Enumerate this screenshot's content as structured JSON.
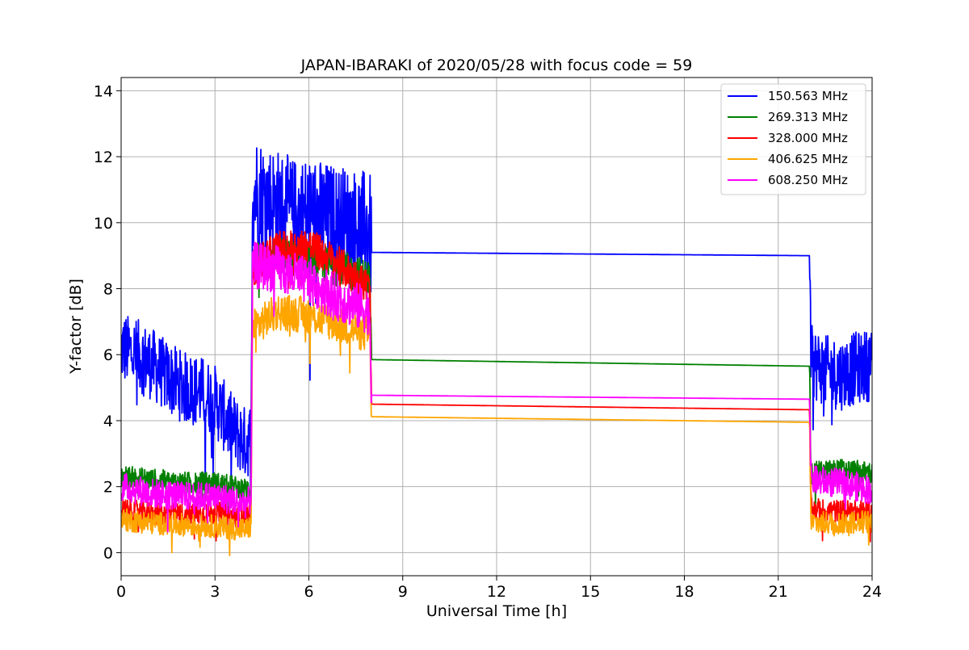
{
  "chart_data": {
    "type": "line",
    "title": "JAPAN-IBARAKI of 2020/05/28 with focus code = 59",
    "xlabel": "Universal Time [h]",
    "ylabel": "Y-factor [dB]",
    "xlim": [
      0,
      24
    ],
    "ylim": [
      -0.7,
      14.4
    ],
    "xticks": [
      "0",
      "3",
      "6",
      "9",
      "12",
      "15",
      "18",
      "21",
      "24"
    ],
    "yticks": [
      "0",
      "2",
      "4",
      "6",
      "8",
      "10",
      "12",
      "14"
    ],
    "grid": true,
    "legend_position": "top-right",
    "series": [
      {
        "name": "150.563 MHz",
        "color": "#0000ff",
        "points": [
          [
            0,
            6.2
          ],
          [
            0.5,
            6.0
          ],
          [
            1.0,
            5.7
          ],
          [
            1.5,
            5.3
          ],
          [
            2.0,
            5.0
          ],
          [
            2.5,
            4.9
          ],
          [
            3.0,
            4.6
          ],
          [
            3.5,
            3.8
          ],
          [
            4.0,
            3.3
          ],
          [
            4.15,
            3.5
          ],
          [
            4.2,
            11.0
          ],
          [
            4.5,
            10.8
          ],
          [
            5.0,
            10.5
          ],
          [
            5.5,
            10.2
          ],
          [
            6.0,
            10.3
          ],
          [
            6.5,
            10.1
          ],
          [
            7.0,
            10.0
          ],
          [
            7.5,
            9.9
          ],
          [
            7.95,
            9.8
          ],
          [
            8.0,
            9.1
          ],
          [
            22.0,
            9.0
          ],
          [
            22.05,
            5.8
          ],
          [
            22.5,
            5.5
          ],
          [
            23.0,
            5.4
          ],
          [
            23.5,
            5.6
          ],
          [
            24.0,
            5.7
          ]
        ],
        "noise": 1.1
      },
      {
        "name": "269.313 MHz",
        "color": "#008000",
        "points": [
          [
            0,
            2.3
          ],
          [
            1.0,
            2.2
          ],
          [
            2.0,
            2.1
          ],
          [
            3.0,
            2.1
          ],
          [
            3.5,
            2.0
          ],
          [
            4.0,
            1.9
          ],
          [
            4.15,
            2.0
          ],
          [
            4.2,
            8.8
          ],
          [
            5.0,
            9.0
          ],
          [
            6.0,
            8.9
          ],
          [
            7.0,
            8.6
          ],
          [
            7.95,
            8.3
          ],
          [
            8.0,
            5.85
          ],
          [
            22.0,
            5.65
          ],
          [
            22.05,
            2.4
          ],
          [
            23.0,
            2.5
          ],
          [
            24.0,
            2.4
          ]
        ],
        "noise": 0.35
      },
      {
        "name": "328.000 MHz",
        "color": "#ff0000",
        "points": [
          [
            0,
            1.3
          ],
          [
            1.0,
            1.2
          ],
          [
            2.0,
            1.15
          ],
          [
            3.0,
            1.2
          ],
          [
            4.0,
            1.1
          ],
          [
            4.15,
            1.2
          ],
          [
            4.2,
            8.6
          ],
          [
            5.0,
            9.2
          ],
          [
            6.0,
            9.3
          ],
          [
            7.0,
            8.7
          ],
          [
            7.95,
            8.0
          ],
          [
            8.0,
            4.5
          ],
          [
            22.0,
            4.33
          ],
          [
            22.05,
            1.3
          ],
          [
            23.0,
            1.25
          ],
          [
            24.0,
            1.25
          ]
        ],
        "noise": 0.35
      },
      {
        "name": "406.625 MHz",
        "color": "#ffa500",
        "points": [
          [
            0,
            1.0
          ],
          [
            1.0,
            0.9
          ],
          [
            2.0,
            0.85
          ],
          [
            3.0,
            0.8
          ],
          [
            4.0,
            0.7
          ],
          [
            4.15,
            0.8
          ],
          [
            4.2,
            6.8
          ],
          [
            5.0,
            7.3
          ],
          [
            6.0,
            7.2
          ],
          [
            7.0,
            6.9
          ],
          [
            7.95,
            6.6
          ],
          [
            8.0,
            4.12
          ],
          [
            22.0,
            3.95
          ],
          [
            22.05,
            0.9
          ],
          [
            23.0,
            0.9
          ],
          [
            24.0,
            0.95
          ]
        ],
        "noise": 0.35
      },
      {
        "name": "608.250 MHz",
        "color": "#ff00ff",
        "points": [
          [
            0,
            2.0
          ],
          [
            1.0,
            1.8
          ],
          [
            2.0,
            1.7
          ],
          [
            3.0,
            1.7
          ],
          [
            4.0,
            1.5
          ],
          [
            4.15,
            1.6
          ],
          [
            4.2,
            8.7
          ],
          [
            5.0,
            8.6
          ],
          [
            6.0,
            8.2
          ],
          [
            7.0,
            7.7
          ],
          [
            7.95,
            7.3
          ],
          [
            8.0,
            4.77
          ],
          [
            22.0,
            4.65
          ],
          [
            22.05,
            2.2
          ],
          [
            23.0,
            2.1
          ],
          [
            24.0,
            1.9
          ]
        ],
        "noise": 0.45
      }
    ]
  }
}
